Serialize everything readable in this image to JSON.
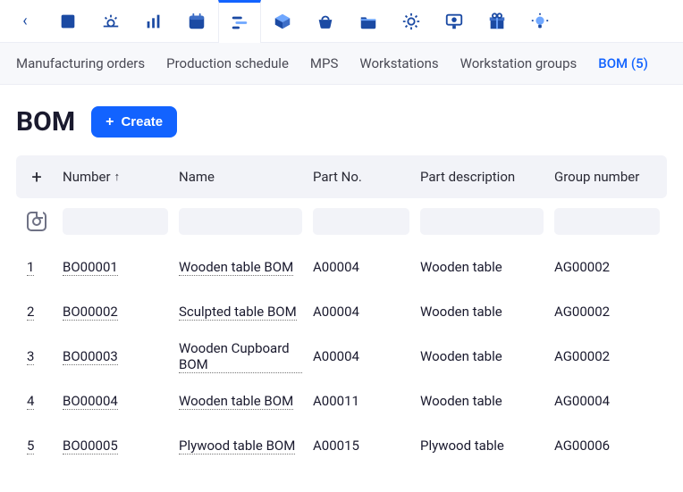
{
  "toolbar": {
    "active_index": 4,
    "icons": [
      "square-icon",
      "sunrise-icon",
      "barchart-icon",
      "calendar-icon",
      "timeline-icon",
      "box-icon",
      "basket-icon",
      "folder-icon",
      "gear-icon",
      "monitor-icon",
      "gift-icon",
      "bulb-icon"
    ]
  },
  "subtabs": {
    "items": [
      {
        "label": "Manufacturing orders",
        "active": false
      },
      {
        "label": "Production schedule",
        "active": false
      },
      {
        "label": "MPS",
        "active": false
      },
      {
        "label": "Workstations",
        "active": false
      },
      {
        "label": "Workstation groups",
        "active": false
      },
      {
        "label": "BOM (5)",
        "active": true
      }
    ]
  },
  "page": {
    "title": "BOM",
    "create_label": "Create"
  },
  "table": {
    "columns": {
      "number": "Number",
      "name": "Name",
      "partno": "Part No.",
      "partdesc": "Part description",
      "groupno": "Group number"
    },
    "sort": {
      "column": "number",
      "dir": "asc"
    },
    "rows": [
      {
        "idx": "1",
        "number": "BO00001",
        "name": "Wooden table BOM",
        "partno": "A00004",
        "partdesc": "Wooden table",
        "groupno": "AG00002"
      },
      {
        "idx": "2",
        "number": "BO00002",
        "name": "Sculpted table BOM",
        "partno": "A00004",
        "partdesc": "Wooden table",
        "groupno": "AG00002"
      },
      {
        "idx": "3",
        "number": "BO00003",
        "name": "Wooden Cupboard BOM",
        "partno": "A00004",
        "partdesc": "Wooden table",
        "groupno": "AG00002"
      },
      {
        "idx": "4",
        "number": "BO00004",
        "name": "Wooden table BOM",
        "partno": "A00011",
        "partdesc": "Wooden table",
        "groupno": "AG00004"
      },
      {
        "idx": "5",
        "number": "BO00005",
        "name": "Plywood table BOM",
        "partno": "A00015",
        "partdesc": "Plywood table",
        "groupno": "AG00006"
      }
    ]
  },
  "colors": {
    "accent": "#1263ff",
    "toolbar_icon": "#1b4aa3",
    "panel_bg": "#f2f3f8"
  }
}
